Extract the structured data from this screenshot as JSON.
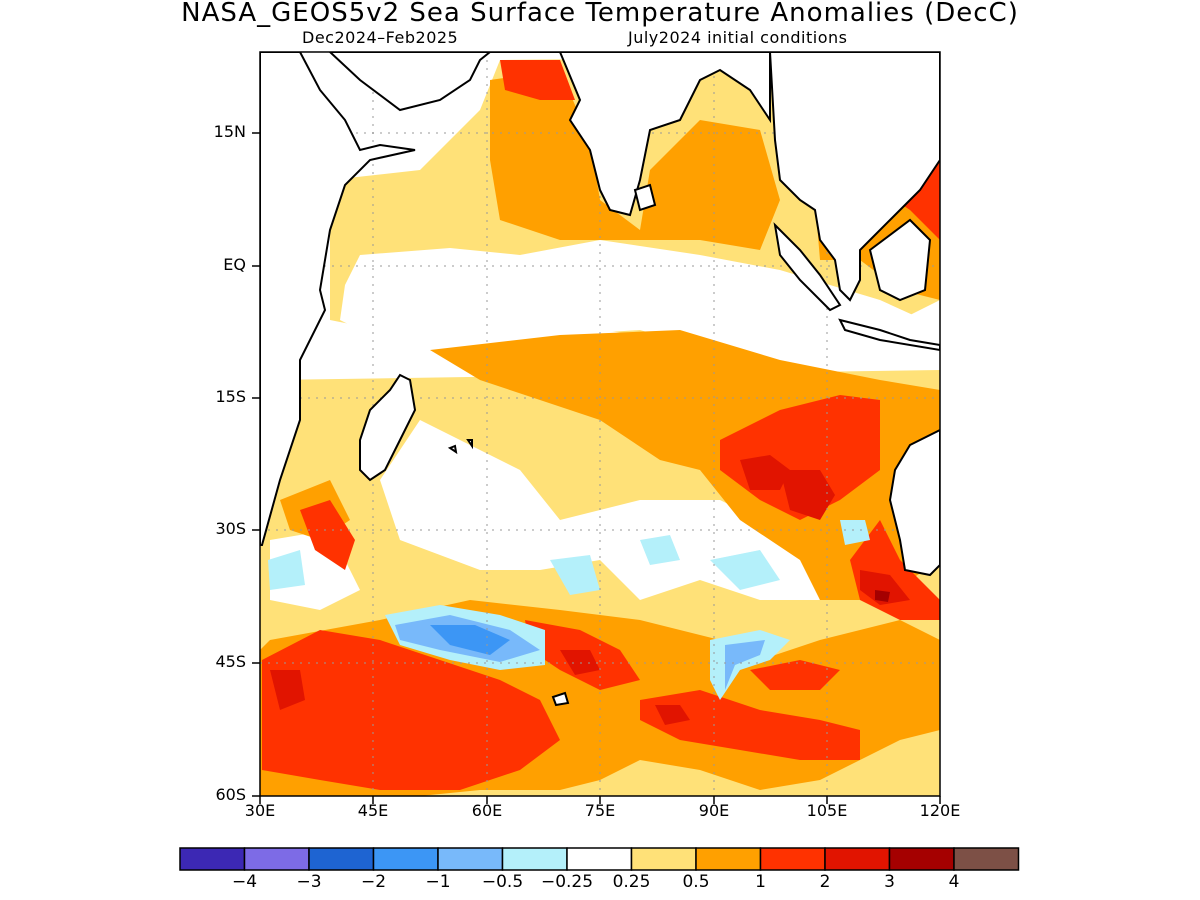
{
  "header": {
    "title": "NASA_GEOS5v2 Sea Surface Temperature Anomalies (DecC)",
    "period": "Dec2024–Feb2025",
    "init": "July2024 initial conditions"
  },
  "axes": {
    "lat_labels": [
      "15N",
      "EQ",
      "15S",
      "30S",
      "45S",
      "60S"
    ],
    "lon_labels": [
      "30E",
      "45E",
      "60E",
      "75E",
      "90E",
      "105E",
      "120E"
    ]
  },
  "colorbar": {
    "colors": [
      "#3c28b4",
      "#7d6be6",
      "#1e64d2",
      "#3c96f5",
      "#78b9fa",
      "#b4f0fa",
      "#ffffff",
      "#ffe178",
      "#ffa000",
      "#ff3200",
      "#e11400",
      "#a50000",
      "#7d5046"
    ],
    "labels": [
      "−4",
      "−3",
      "−2",
      "−1",
      "−0.5",
      "−0.25",
      "0.25",
      "0.5",
      "1",
      "2",
      "3",
      "4"
    ]
  },
  "map": {
    "region": "Indian Ocean",
    "lon_range": [
      "30E",
      "120E"
    ],
    "lat_range": [
      "60S",
      "22N"
    ]
  }
}
